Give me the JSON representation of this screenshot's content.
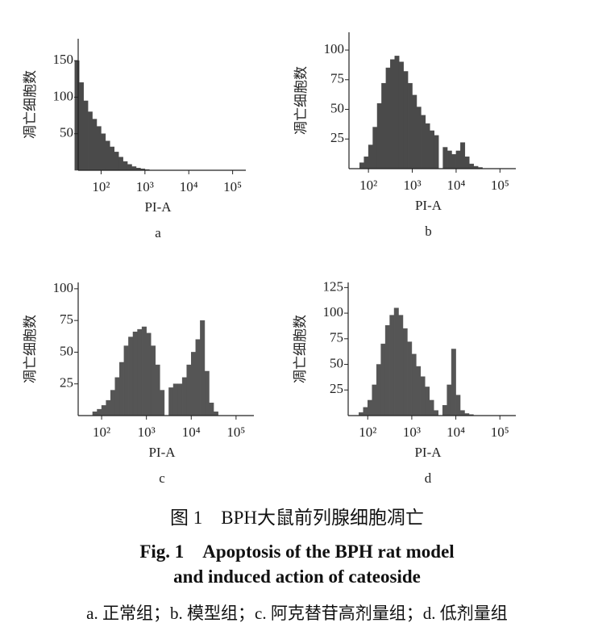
{
  "chart_data": [
    {
      "type": "histogram",
      "panel_label": "a",
      "x_label": "PI-A",
      "y_label": "凋亡细胞数",
      "xscale": "log",
      "color": "#4a4a4a",
      "xlim": [
        30,
        200000
      ],
      "ylim": [
        0,
        180
      ],
      "xticks": [
        {
          "value": 100,
          "label": "10²"
        },
        {
          "value": 1000,
          "label": "10³"
        },
        {
          "value": 10000,
          "label": "10⁴"
        },
        {
          "value": 100000,
          "label": "10⁵"
        }
      ],
      "yticks": [
        50,
        100,
        150
      ],
      "bins": [
        25.1,
        31.6,
        39.8,
        50.1,
        63.1,
        79.4,
        100,
        125.9,
        158.5,
        199.5,
        251.2,
        316.2,
        398.1,
        501.2,
        631,
        794.3,
        1000,
        1259,
        1585
      ],
      "values": [
        150,
        120,
        95,
        80,
        70,
        60,
        50,
        40,
        32,
        25,
        18,
        12,
        8,
        5,
        3,
        2,
        1,
        0
      ]
    },
    {
      "type": "histogram",
      "panel_label": "b",
      "x_label": "PI-A",
      "y_label": "凋亡细胞数",
      "xscale": "log",
      "color": "#4a4a4a",
      "xlim": [
        36,
        230000
      ],
      "ylim": [
        0,
        115
      ],
      "xticks": [
        {
          "value": 100,
          "label": "10²"
        },
        {
          "value": 1000,
          "label": "10³"
        },
        {
          "value": 10000,
          "label": "10⁴"
        },
        {
          "value": 100000,
          "label": "10⁵"
        }
      ],
      "yticks": [
        25,
        50,
        75,
        100
      ],
      "bins": [
        63.1,
        79.4,
        100,
        125.9,
        158.5,
        199.5,
        251.2,
        316.2,
        398.1,
        501.2,
        631,
        794.3,
        1000,
        1259,
        1585,
        1995,
        2512,
        3162,
        3981,
        5012,
        6310,
        7943,
        10000,
        12589,
        15849,
        19953,
        25119,
        31623,
        39811
      ],
      "values": [
        5,
        10,
        20,
        35,
        55,
        72,
        85,
        92,
        95,
        90,
        82,
        72,
        62,
        52,
        45,
        38,
        32,
        28,
        0,
        18,
        15,
        12,
        15,
        22,
        10,
        4,
        2,
        1
      ]
    },
    {
      "type": "histogram",
      "panel_label": "c",
      "x_label": "PI-A",
      "y_label": "凋亡细胞数",
      "xscale": "log",
      "color": "#555555",
      "xlim": [
        30,
        250000
      ],
      "ylim": [
        0,
        105
      ],
      "xticks": [
        {
          "value": 100,
          "label": "10²"
        },
        {
          "value": 1000,
          "label": "10³"
        },
        {
          "value": 10000,
          "label": "10⁴"
        },
        {
          "value": 100000,
          "label": "10⁵"
        }
      ],
      "yticks": [
        25,
        50,
        75,
        100
      ],
      "bins": [
        63.1,
        79.4,
        100,
        125.9,
        158.5,
        199.5,
        251.2,
        316.2,
        398.1,
        501.2,
        631,
        794.3,
        1000,
        1259,
        1585,
        1995,
        2512,
        3162,
        3981,
        5012,
        6310,
        7943,
        10000,
        12589,
        15849,
        19953,
        25119,
        31623,
        39811
      ],
      "values": [
        3,
        5,
        8,
        12,
        20,
        30,
        42,
        55,
        62,
        66,
        68,
        70,
        65,
        55,
        40,
        20,
        0,
        22,
        25,
        25,
        30,
        40,
        50,
        60,
        75,
        35,
        10,
        3
      ]
    },
    {
      "type": "histogram",
      "panel_label": "d",
      "x_label": "PI-A",
      "y_label": "凋亡细胞数",
      "xscale": "log",
      "color": "#555555",
      "xlim": [
        36,
        230000
      ],
      "ylim": [
        0,
        130
      ],
      "xticks": [
        {
          "value": 100,
          "label": "10²"
        },
        {
          "value": 1000,
          "label": "10³"
        },
        {
          "value": 10000,
          "label": "10⁴"
        },
        {
          "value": 100000,
          "label": "10⁵"
        }
      ],
      "yticks": [
        25,
        50,
        75,
        100,
        125
      ],
      "bins": [
        63.1,
        79.4,
        100,
        125.9,
        158.5,
        199.5,
        251.2,
        316.2,
        398.1,
        501.2,
        631,
        794.3,
        1000,
        1259,
        1585,
        1995,
        2512,
        3162,
        3981,
        5012,
        6310,
        7943,
        10000,
        12589,
        15849,
        19953,
        25119,
        31623,
        39811
      ],
      "values": [
        3,
        8,
        15,
        30,
        50,
        70,
        88,
        98,
        105,
        98,
        85,
        72,
        60,
        48,
        38,
        28,
        15,
        5,
        0,
        10,
        30,
        65,
        20,
        5,
        2,
        1,
        0,
        0
      ]
    }
  ],
  "caption": {
    "zh_title": "图 1　BPH大鼠前列腺细胞凋亡",
    "en_title": [
      "Fig. 1　Apoptosis of the BPH rat model",
      "and induced action of cateoside"
    ],
    "legend": "a. 正常组；b. 模型组；c. 阿克替苷高剂量组；d. 低剂量组"
  }
}
